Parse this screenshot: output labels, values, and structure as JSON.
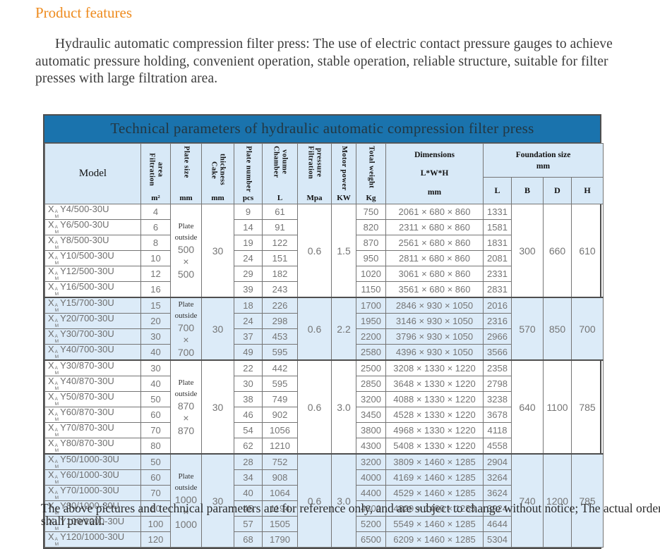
{
  "page": {
    "heading": "Product features",
    "intro": "Hydraulic automatic compression filter press: The use of electric contact pressure gauges to achieve automatic pressure holding, convenient operation, stable operation, reliable structure, suitable for filter presses with large filtration area.",
    "footnote": "The above pictures and technical parameters are for reference only, and are subject to change without notice; The actual order shall prevail."
  },
  "colors": {
    "accent_orange": "#ee8b1e",
    "title_bar_blue": "#1a73ad",
    "header_blue": "#d8e9f7",
    "band_blue": "#dcebf8",
    "border_gray": "#757575",
    "data_text_gray": "#757575"
  },
  "table": {
    "title": "Technical parameters of hydraulic automatic compression filter press",
    "model_prefix": {
      "base": "X",
      "top": "A",
      "bottom": "M"
    },
    "columns": {
      "model": {
        "label": "Model"
      },
      "area": {
        "label": "Filtration area",
        "unit": "m²"
      },
      "plate_size": {
        "label": "Plate size",
        "unit": "mm"
      },
      "cake": {
        "label": "Cake thickness",
        "unit": "mm"
      },
      "plates": {
        "label": "Plate number",
        "unit": "pcs"
      },
      "volume": {
        "label": "Chamber\nvolume",
        "unit": "L"
      },
      "pressure": {
        "label": "Filtration\npressure",
        "unit": "Mpa"
      },
      "motor": {
        "label": "Motor power",
        "unit": "KW"
      },
      "weight": {
        "label": "Total weight",
        "unit": "Kg"
      },
      "dims": {
        "lines": [
          "Dimensions",
          "L*W*H",
          "mm"
        ]
      },
      "foundation": {
        "label": "Foundation size",
        "unit": "mm",
        "subs": [
          "L",
          "B",
          "D",
          "H"
        ]
      }
    },
    "groups": [
      {
        "plate_lines": [
          "Plate",
          "outside",
          "500",
          "×",
          "500"
        ],
        "cake": "30",
        "pressure": "0.6",
        "motor": "1.5",
        "foundation": {
          "B": "300",
          "D": "660",
          "H": "610"
        },
        "rows": [
          {
            "model": "Y4/500-30U",
            "area": "4",
            "plates": "9",
            "volume": "61",
            "weight": "750",
            "dims": "2061 × 680 × 860",
            "L": "1331"
          },
          {
            "model": "Y6/500-30U",
            "area": "6",
            "plates": "14",
            "volume": "91",
            "weight": "820",
            "dims": "2311 × 680 × 860",
            "L": "1581"
          },
          {
            "model": "Y8/500-30U",
            "area": "8",
            "plates": "19",
            "volume": "122",
            "weight": "870",
            "dims": "2561 × 680 × 860",
            "L": "1831"
          },
          {
            "model": "Y10/500-30U",
            "area": "10",
            "plates": "24",
            "volume": "151",
            "weight": "950",
            "dims": "2811 × 680 × 860",
            "L": "2081"
          },
          {
            "model": "Y12/500-30U",
            "area": "12",
            "plates": "29",
            "volume": "182",
            "weight": "1020",
            "dims": "3061 × 680 × 860",
            "L": "2331"
          },
          {
            "model": "Y16/500-30U",
            "area": "16",
            "plates": "39",
            "volume": "243",
            "weight": "1150",
            "dims": "3561 × 680 × 860",
            "L": "2831"
          }
        ]
      },
      {
        "plate_lines": [
          "Plate",
          "outside",
          "700",
          "×",
          "700"
        ],
        "cake": "30",
        "pressure": "0.6",
        "motor": "2.2",
        "foundation": {
          "B": "570",
          "D": "850",
          "H": "700"
        },
        "rows": [
          {
            "model": "Y15/700-30U",
            "area": "15",
            "plates": "18",
            "volume": "226",
            "weight": "1700",
            "dims": "2846 × 930 × 1050",
            "L": "2016"
          },
          {
            "model": "Y20/700-30U",
            "area": "20",
            "plates": "24",
            "volume": "298",
            "weight": "1950",
            "dims": "3146 × 930 × 1050",
            "L": "2316"
          },
          {
            "model": "Y30/700-30U",
            "area": "30",
            "plates": "37",
            "volume": "453",
            "weight": "2200",
            "dims": "3796 × 930 × 1050",
            "L": "2966"
          },
          {
            "model": "Y40/700-30U",
            "area": "40",
            "plates": "49",
            "volume": "595",
            "weight": "2580",
            "dims": "4396 × 930 × 1050",
            "L": "3566"
          }
        ]
      },
      {
        "plate_lines": [
          "Plate",
          "outside",
          "870",
          "×",
          "870"
        ],
        "cake": "30",
        "pressure": "0.6",
        "motor": "3.0",
        "foundation": {
          "B": "640",
          "D": "1100",
          "H": "785"
        },
        "rows": [
          {
            "model": "Y30/870-30U",
            "area": "30",
            "plates": "22",
            "volume": "442",
            "weight": "2500",
            "dims": "3208 × 1330 × 1220",
            "L": "2358"
          },
          {
            "model": "Y40/870-30U",
            "area": "40",
            "plates": "30",
            "volume": "595",
            "weight": "2850",
            "dims": "3648 × 1330 × 1220",
            "L": "2798"
          },
          {
            "model": "Y50/870-30U",
            "area": "50",
            "plates": "38",
            "volume": "749",
            "weight": "3200",
            "dims": "4088 × 1330 × 1220",
            "L": "3238"
          },
          {
            "model": "Y60/870-30U",
            "area": "60",
            "plates": "46",
            "volume": "902",
            "weight": "3450",
            "dims": "4528 × 1330 × 1220",
            "L": "3678"
          },
          {
            "model": "Y70/870-30U",
            "area": "70",
            "plates": "54",
            "volume": "1056",
            "weight": "3800",
            "dims": "4968 × 1330 × 1220",
            "L": "4118"
          },
          {
            "model": "Y80/870-30U",
            "area": "80",
            "plates": "62",
            "volume": "1210",
            "weight": "4300",
            "dims": "5408 × 1330 × 1220",
            "L": "4558"
          }
        ]
      },
      {
        "plate_lines": [
          "Plate",
          "outside",
          "1000",
          "×",
          "1000"
        ],
        "cake": "30",
        "pressure": "0.6",
        "motor": "3.0",
        "foundation": {
          "B": "740",
          "D": "1200",
          "H": "785"
        },
        "rows": [
          {
            "model": "Y50/1000-30U",
            "area": "50",
            "plates": "28",
            "volume": "752",
            "weight": "3200",
            "dims": "3809 × 1460 × 1285",
            "L": "2904"
          },
          {
            "model": "Y60/1000-30U",
            "area": "60",
            "plates": "34",
            "volume": "908",
            "weight": "4000",
            "dims": "4169 × 1460 × 1285",
            "L": "3264"
          },
          {
            "model": "Y70/1000-30U",
            "area": "70",
            "plates": "40",
            "volume": "1064",
            "weight": "4400",
            "dims": "4529 × 1460 × 1285",
            "L": "3624"
          },
          {
            "model": "Y80/1000-30U",
            "area": "80",
            "plates": "45",
            "volume": "1194",
            "weight": "4800",
            "dims": "4829 × 1460 × 1285",
            "L": "3924"
          },
          {
            "model": "Y100/1000-30U",
            "area": "100",
            "plates": "57",
            "volume": "1505",
            "weight": "5200",
            "dims": "5549 × 1460 × 1285",
            "L": "4644"
          },
          {
            "model": "Y120/1000-30U",
            "area": "120",
            "plates": "68",
            "volume": "1790",
            "weight": "6500",
            "dims": "6209 × 1460 × 1285",
            "L": "5304"
          }
        ]
      }
    ]
  }
}
